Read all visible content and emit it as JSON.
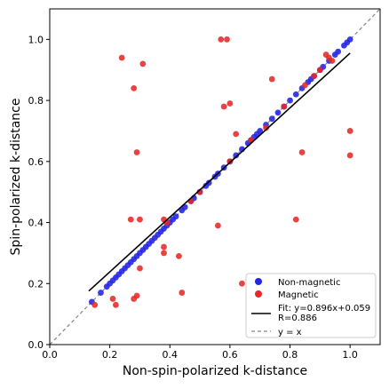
{
  "chart_data": {
    "type": "scatter",
    "xlabel": "Non-spin-polarized k-distance",
    "ylabel": "Spin-polarized k-distance",
    "xlim": [
      0.0,
      1.1
    ],
    "ylim": [
      0.0,
      1.1
    ],
    "xticks": [
      "0.0",
      "0.2",
      "0.4",
      "0.6",
      "0.8",
      "1.0"
    ],
    "yticks": [
      "0.0",
      "0.2",
      "0.4",
      "0.6",
      "0.8",
      "1.0"
    ],
    "grid": false,
    "legend_position": "bottom-right",
    "fit": {
      "slope": 0.896,
      "intercept": 0.059,
      "x_range": [
        0.13,
        1.0
      ],
      "label_line1": "Fit: y=0.896x+0.059",
      "label_line2": "R=0.886"
    },
    "reference": {
      "label": "y = x"
    },
    "series": [
      {
        "name": "Non-magnetic",
        "color": "#2323e6",
        "points": [
          [
            0.14,
            0.14
          ],
          [
            0.17,
            0.17
          ],
          [
            0.19,
            0.19
          ],
          [
            0.2,
            0.2
          ],
          [
            0.21,
            0.21
          ],
          [
            0.22,
            0.22
          ],
          [
            0.23,
            0.23
          ],
          [
            0.24,
            0.24
          ],
          [
            0.25,
            0.25
          ],
          [
            0.26,
            0.26
          ],
          [
            0.27,
            0.27
          ],
          [
            0.28,
            0.28
          ],
          [
            0.29,
            0.29
          ],
          [
            0.3,
            0.3
          ],
          [
            0.31,
            0.31
          ],
          [
            0.32,
            0.32
          ],
          [
            0.33,
            0.33
          ],
          [
            0.34,
            0.34
          ],
          [
            0.35,
            0.35
          ],
          [
            0.36,
            0.36
          ],
          [
            0.37,
            0.37
          ],
          [
            0.38,
            0.38
          ],
          [
            0.39,
            0.39
          ],
          [
            0.4,
            0.4
          ],
          [
            0.41,
            0.41
          ],
          [
            0.42,
            0.42
          ],
          [
            0.44,
            0.44
          ],
          [
            0.45,
            0.45
          ],
          [
            0.47,
            0.47
          ],
          [
            0.48,
            0.48
          ],
          [
            0.5,
            0.5
          ],
          [
            0.52,
            0.52
          ],
          [
            0.53,
            0.53
          ],
          [
            0.55,
            0.55
          ],
          [
            0.56,
            0.56
          ],
          [
            0.58,
            0.58
          ],
          [
            0.6,
            0.6
          ],
          [
            0.62,
            0.62
          ],
          [
            0.64,
            0.64
          ],
          [
            0.66,
            0.66
          ],
          [
            0.67,
            0.67
          ],
          [
            0.68,
            0.68
          ],
          [
            0.69,
            0.69
          ],
          [
            0.7,
            0.7
          ],
          [
            0.72,
            0.72
          ],
          [
            0.74,
            0.74
          ],
          [
            0.76,
            0.76
          ],
          [
            0.78,
            0.78
          ],
          [
            0.8,
            0.8
          ],
          [
            0.82,
            0.82
          ],
          [
            0.84,
            0.84
          ],
          [
            0.86,
            0.86
          ],
          [
            0.87,
            0.87
          ],
          [
            0.88,
            0.88
          ],
          [
            0.9,
            0.9
          ],
          [
            0.91,
            0.91
          ],
          [
            0.93,
            0.93
          ],
          [
            0.95,
            0.95
          ],
          [
            0.96,
            0.96
          ],
          [
            0.98,
            0.98
          ],
          [
            0.99,
            0.99
          ],
          [
            1.0,
            1.0
          ]
        ]
      },
      {
        "name": "Magnetic",
        "color": "#e62828",
        "points": [
          [
            0.15,
            0.13
          ],
          [
            0.21,
            0.15
          ],
          [
            0.22,
            0.13
          ],
          [
            0.24,
            0.94
          ],
          [
            0.27,
            0.41
          ],
          [
            0.28,
            0.15
          ],
          [
            0.28,
            0.84
          ],
          [
            0.29,
            0.16
          ],
          [
            0.29,
            0.63
          ],
          [
            0.3,
            0.41
          ],
          [
            0.3,
            0.25
          ],
          [
            0.31,
            0.92
          ],
          [
            0.38,
            0.41
          ],
          [
            0.38,
            0.32
          ],
          [
            0.38,
            0.3
          ],
          [
            0.39,
            0.4
          ],
          [
            0.43,
            0.29
          ],
          [
            0.44,
            0.17
          ],
          [
            0.47,
            0.47
          ],
          [
            0.5,
            0.5
          ],
          [
            0.56,
            0.39
          ],
          [
            0.57,
            1.0
          ],
          [
            0.58,
            0.78
          ],
          [
            0.59,
            1.0
          ],
          [
            0.6,
            0.79
          ],
          [
            0.6,
            0.6
          ],
          [
            0.62,
            0.69
          ],
          [
            0.64,
            0.2
          ],
          [
            0.67,
            0.67
          ],
          [
            0.72,
            0.71
          ],
          [
            0.74,
            0.87
          ],
          [
            0.78,
            0.78
          ],
          [
            0.82,
            0.41
          ],
          [
            0.84,
            0.63
          ],
          [
            0.85,
            0.85
          ],
          [
            0.88,
            0.88
          ],
          [
            0.9,
            0.9
          ],
          [
            0.92,
            0.95
          ],
          [
            0.93,
            0.94
          ],
          [
            0.94,
            0.93
          ],
          [
            1.0,
            0.7
          ],
          [
            1.0,
            0.62
          ]
        ]
      }
    ]
  }
}
